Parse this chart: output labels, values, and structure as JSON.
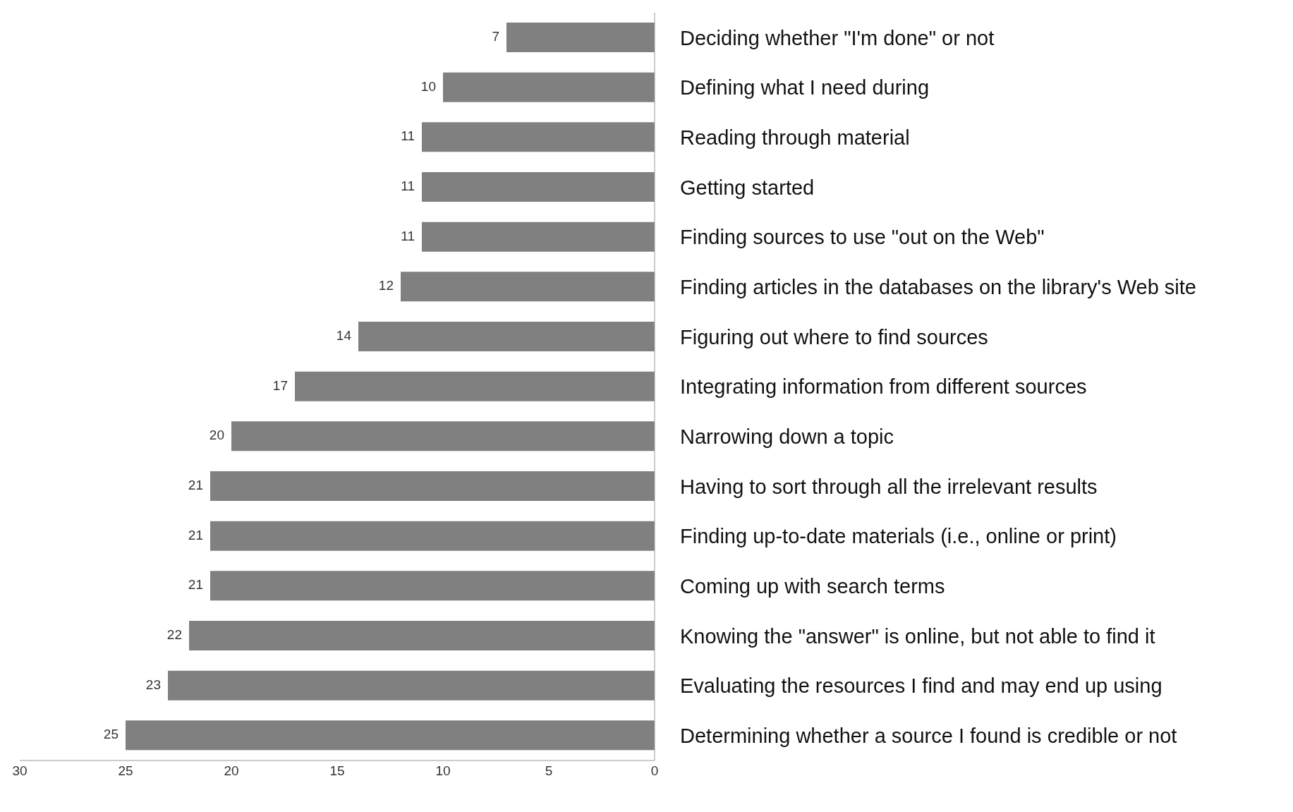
{
  "chart_data": {
    "type": "bar",
    "orientation": "horizontal",
    "categories": [
      "Deciding whether \"I'm done\" or not",
      "Defining what I need during",
      "Reading through material",
      "Getting started",
      "Finding sources to use \"out on the Web\"",
      "Finding articles in the databases on the library's Web site",
      "Figuring out where to find sources",
      "Integrating information from different sources",
      "Narrowing down a topic",
      "Having to sort through all the irrelevant results",
      "Finding up-to-date materials  (i.e., online or print)",
      "Coming up with search terms",
      "Knowing the \"answer\" is online, but not able to find it",
      "Evaluating the resources I find and may end up using",
      "Determining whether a source I found is credible or not"
    ],
    "values": [
      7,
      10,
      11,
      11,
      11,
      12,
      14,
      17,
      20,
      21,
      21,
      21,
      22,
      23,
      25
    ],
    "color": "#808080",
    "xlim": [
      30,
      0
    ],
    "xticks": [
      30,
      25,
      20,
      15,
      10,
      5,
      0
    ],
    "data_labels": true
  }
}
